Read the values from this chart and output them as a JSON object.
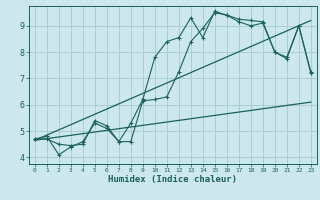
{
  "xlabel": "Humidex (Indice chaleur)",
  "bg_color": "#cce8ec",
  "grid_color": "#aacdd4",
  "line_color": "#1a6060",
  "xlim": [
    -0.5,
    23.5
  ],
  "ylim": [
    3.75,
    9.75
  ],
  "xticks": [
    0,
    1,
    2,
    3,
    4,
    5,
    6,
    7,
    8,
    9,
    10,
    11,
    12,
    13,
    14,
    15,
    16,
    17,
    18,
    19,
    20,
    21,
    22,
    23
  ],
  "yticks": [
    4,
    5,
    6,
    7,
    8,
    9
  ],
  "line1_x": [
    0,
    1,
    2,
    3,
    4,
    5,
    6,
    7,
    8,
    9,
    10,
    11,
    12,
    13,
    14,
    15,
    16,
    17,
    18,
    19,
    20,
    21,
    22,
    23
  ],
  "line1_y": [
    4.7,
    4.8,
    4.1,
    4.4,
    4.6,
    5.3,
    5.1,
    4.6,
    5.3,
    6.2,
    7.8,
    8.4,
    8.55,
    9.3,
    8.55,
    9.55,
    9.4,
    9.25,
    9.2,
    9.15,
    8.0,
    7.8,
    9.0,
    7.25
  ],
  "line2_x": [
    0,
    1,
    2,
    3,
    4,
    5,
    6,
    7,
    8,
    9,
    10,
    11,
    12,
    13,
    14,
    15,
    16,
    17,
    18,
    19,
    20,
    21,
    22,
    23
  ],
  "line2_y": [
    4.7,
    4.7,
    4.5,
    4.45,
    4.5,
    5.4,
    5.2,
    4.6,
    4.6,
    6.15,
    6.2,
    6.3,
    7.25,
    8.4,
    8.9,
    9.5,
    9.4,
    9.15,
    9.0,
    9.1,
    8.0,
    7.75,
    9.0,
    7.2
  ],
  "line3_x": [
    0,
    23
  ],
  "line3_y": [
    4.65,
    6.1
  ],
  "line4_x": [
    0,
    23
  ],
  "line4_y": [
    4.65,
    9.2
  ]
}
